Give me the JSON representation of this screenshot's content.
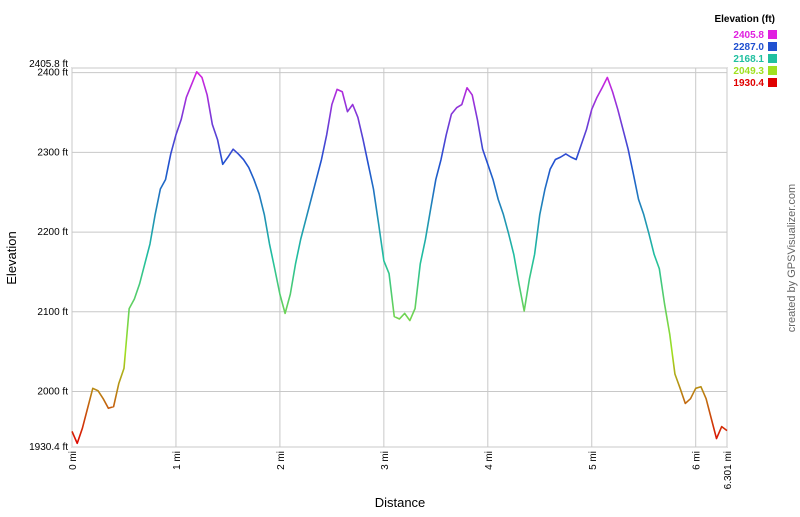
{
  "chart_data": {
    "type": "line",
    "x_label": "Distance",
    "y_label": "Elevation",
    "legend_title": "Elevation (ft)",
    "credit": "created by GPSVisualizer.com",
    "grid": true,
    "xlim": [
      0,
      6.301
    ],
    "xticks": [
      {
        "value": 0,
        "label": "0 mi"
      },
      {
        "value": 1,
        "label": "1 mi"
      },
      {
        "value": 2,
        "label": "2 mi"
      },
      {
        "value": 3,
        "label": "3 mi"
      },
      {
        "value": 4,
        "label": "4 mi"
      },
      {
        "value": 5,
        "label": "5 mi"
      },
      {
        "value": 6,
        "label": "6 mi"
      },
      {
        "value": 6.301,
        "label": "6.301 mi"
      }
    ],
    "ylim": [
      1930.4,
      2405.8
    ],
    "yticks": [
      {
        "value": 1930.4,
        "label": "1930.4 ft"
      },
      {
        "value": 2000,
        "label": "2000 ft"
      },
      {
        "value": 2100,
        "label": "2100 ft"
      },
      {
        "value": 2200,
        "label": "2200 ft"
      },
      {
        "value": 2300,
        "label": "2300 ft"
      },
      {
        "value": 2400,
        "label": "2400 ft"
      },
      {
        "value": 2405.8,
        "label": "2405.8 ft"
      }
    ],
    "color_scale": [
      {
        "value": 2405.8,
        "color": "#e020e0"
      },
      {
        "value": 2287,
        "label": "2287.0",
        "color": "#2050d0"
      },
      {
        "value": 2168.1,
        "color": "#20c0a0"
      },
      {
        "value": 2049.3,
        "color": "#a0e020"
      },
      {
        "value": 1930.4,
        "color": "#e00000"
      }
    ],
    "x": [
      0,
      0.05,
      0.1,
      0.15,
      0.2,
      0.25,
      0.3,
      0.35,
      0.4,
      0.45,
      0.5,
      0.55,
      0.6,
      0.65,
      0.7,
      0.75,
      0.8,
      0.85,
      0.9,
      0.95,
      1.0,
      1.05,
      1.1,
      1.15,
      1.2,
      1.25,
      1.3,
      1.35,
      1.4,
      1.45,
      1.5,
      1.55,
      1.6,
      1.65,
      1.7,
      1.75,
      1.8,
      1.85,
      1.9,
      1.95,
      2.0,
      2.05,
      2.1,
      2.15,
      2.2,
      2.25,
      2.3,
      2.35,
      2.4,
      2.45,
      2.5,
      2.55,
      2.6,
      2.65,
      2.7,
      2.75,
      2.8,
      2.85,
      2.9,
      2.95,
      3.0,
      3.05,
      3.1,
      3.15,
      3.2,
      3.25,
      3.3,
      3.35,
      3.4,
      3.45,
      3.5,
      3.55,
      3.6,
      3.65,
      3.7,
      3.75,
      3.8,
      3.85,
      3.9,
      3.95,
      4.0,
      4.05,
      4.1,
      4.15,
      4.2,
      4.25,
      4.3,
      4.35,
      4.4,
      4.45,
      4.5,
      4.55,
      4.6,
      4.65,
      4.7,
      4.75,
      4.8,
      4.85,
      4.9,
      4.95,
      5.0,
      5.05,
      5.1,
      5.15,
      5.2,
      5.25,
      5.3,
      5.35,
      5.4,
      5.45,
      5.5,
      5.55,
      5.6,
      5.65,
      5.7,
      5.75,
      5.8,
      5.85,
      5.9,
      5.95,
      6.0,
      6.05,
      6.1,
      6.15,
      6.2,
      6.25,
      6.301
    ],
    "series": [
      {
        "values": [
          1950,
          1935,
          1954,
          1979,
          2004,
          2001,
          1991,
          1979,
          1981,
          2010,
          2029,
          2104,
          2116,
          2135,
          2160,
          2185,
          2222,
          2254,
          2266,
          2298,
          2322,
          2341,
          2369,
          2385,
          2401,
          2394,
          2372,
          2335,
          2316,
          2285,
          2294,
          2304,
          2298,
          2291,
          2281,
          2266,
          2248,
          2222,
          2185,
          2154,
          2122,
          2098,
          2122,
          2160,
          2191,
          2216,
          2241,
          2266,
          2291,
          2322,
          2360,
          2379,
          2376,
          2351,
          2360,
          2344,
          2316,
          2285,
          2254,
          2210,
          2164,
          2148,
          2094,
          2091,
          2098,
          2089,
          2104,
          2160,
          2191,
          2229,
          2266,
          2291,
          2322,
          2348,
          2356,
          2360,
          2381,
          2372,
          2341,
          2304,
          2285,
          2266,
          2241,
          2222,
          2198,
          2172,
          2135,
          2101,
          2141,
          2172,
          2222,
          2254,
          2279,
          2291,
          2294,
          2298,
          2294,
          2291,
          2310,
          2329,
          2354,
          2369,
          2381,
          2394,
          2376,
          2354,
          2329,
          2304,
          2273,
          2241,
          2222,
          2198,
          2172,
          2154,
          2110,
          2072,
          2022,
          2004,
          1985,
          1991,
          2004,
          2006,
          1991,
          1966,
          1941,
          1956,
          1951
        ]
      }
    ]
  }
}
